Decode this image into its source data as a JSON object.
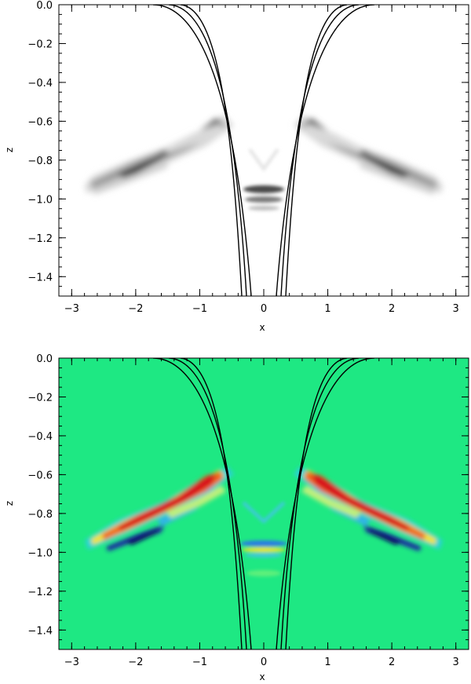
{
  "chart_data": [
    {
      "type": "heatmap",
      "colormap": "grayscale (white = 0, black = high amplitude)",
      "xlabel": "x",
      "ylabel": "z",
      "xlim": [
        -3.2,
        3.2
      ],
      "ylim": [
        -1.5,
        0.0
      ],
      "xticks": [
        -3,
        -2,
        -1,
        0,
        1,
        2,
        3
      ],
      "xtick_labels": [
        "−3",
        "−2",
        "−1",
        "0",
        "1",
        "2",
        "3"
      ],
      "yticks": [
        0.0,
        -0.2,
        -0.4,
        -0.6,
        -0.8,
        -1.0,
        -1.2,
        -1.4
      ],
      "ytick_labels": [
        "0.0",
        "−0.2",
        "−0.4",
        "−0.6",
        "−0.8",
        "−1.0",
        "−1.2",
        "−1.4"
      ],
      "overlay": "three pairs of black field lines mirrored about x = 0",
      "features": [
        {
          "name": "left wing",
          "from": [
            -2.7,
            -0.93
          ],
          "to": [
            -0.65,
            -0.58
          ],
          "peak": [
            -1.9,
            -0.82
          ]
        },
        {
          "name": "right wing",
          "from": [
            0.65,
            -0.58
          ],
          "to": [
            2.7,
            -0.93
          ],
          "peak": [
            1.9,
            -0.82
          ]
        },
        {
          "name": "central bands",
          "z": [
            -0.98,
            -1.03
          ]
        }
      ]
    },
    {
      "type": "heatmap",
      "colormap": "rainbow (blue = negative, green = 0, red = positive)",
      "background_color": "#1ee883",
      "xlabel": "x",
      "ylabel": "z",
      "xlim": [
        -3.2,
        3.2
      ],
      "ylim": [
        -1.5,
        0.0
      ],
      "xticks": [
        -3,
        -2,
        -1,
        0,
        1,
        2,
        3
      ],
      "xtick_labels": [
        "−3",
        "−2",
        "−1",
        "0",
        "1",
        "2",
        "3"
      ],
      "yticks": [
        0.0,
        -0.2,
        -0.4,
        -0.6,
        -0.8,
        -1.0,
        -1.2,
        -1.4
      ],
      "ytick_labels": [
        "0.0",
        "−0.2",
        "−0.4",
        "−0.6",
        "−0.8",
        "−1.0",
        "−1.2",
        "−1.4"
      ],
      "overlay": "three pairs of black field lines mirrored about x = 0",
      "features": [
        {
          "name": "left wing",
          "from": [
            -2.7,
            -0.93
          ],
          "to": [
            -0.65,
            -0.58
          ],
          "red_peak": [
            -1.4,
            -0.72
          ],
          "blue_peak": [
            -1.9,
            -0.84
          ]
        },
        {
          "name": "right wing",
          "from": [
            0.65,
            -0.58
          ],
          "to": [
            2.7,
            -0.93
          ],
          "red_peak": [
            1.4,
            -0.72
          ],
          "blue_peak": [
            1.9,
            -0.84
          ]
        },
        {
          "name": "central bands",
          "z": [
            -0.97,
            -1.03
          ]
        }
      ]
    }
  ],
  "field_lines": {
    "surface_crossings": [
      -0.77,
      -0.58,
      -0.4,
      0.4,
      0.58,
      0.77
    ],
    "bottom_crossings": [
      -0.33,
      -0.27,
      -0.21,
      0.21,
      0.27,
      0.33
    ]
  }
}
